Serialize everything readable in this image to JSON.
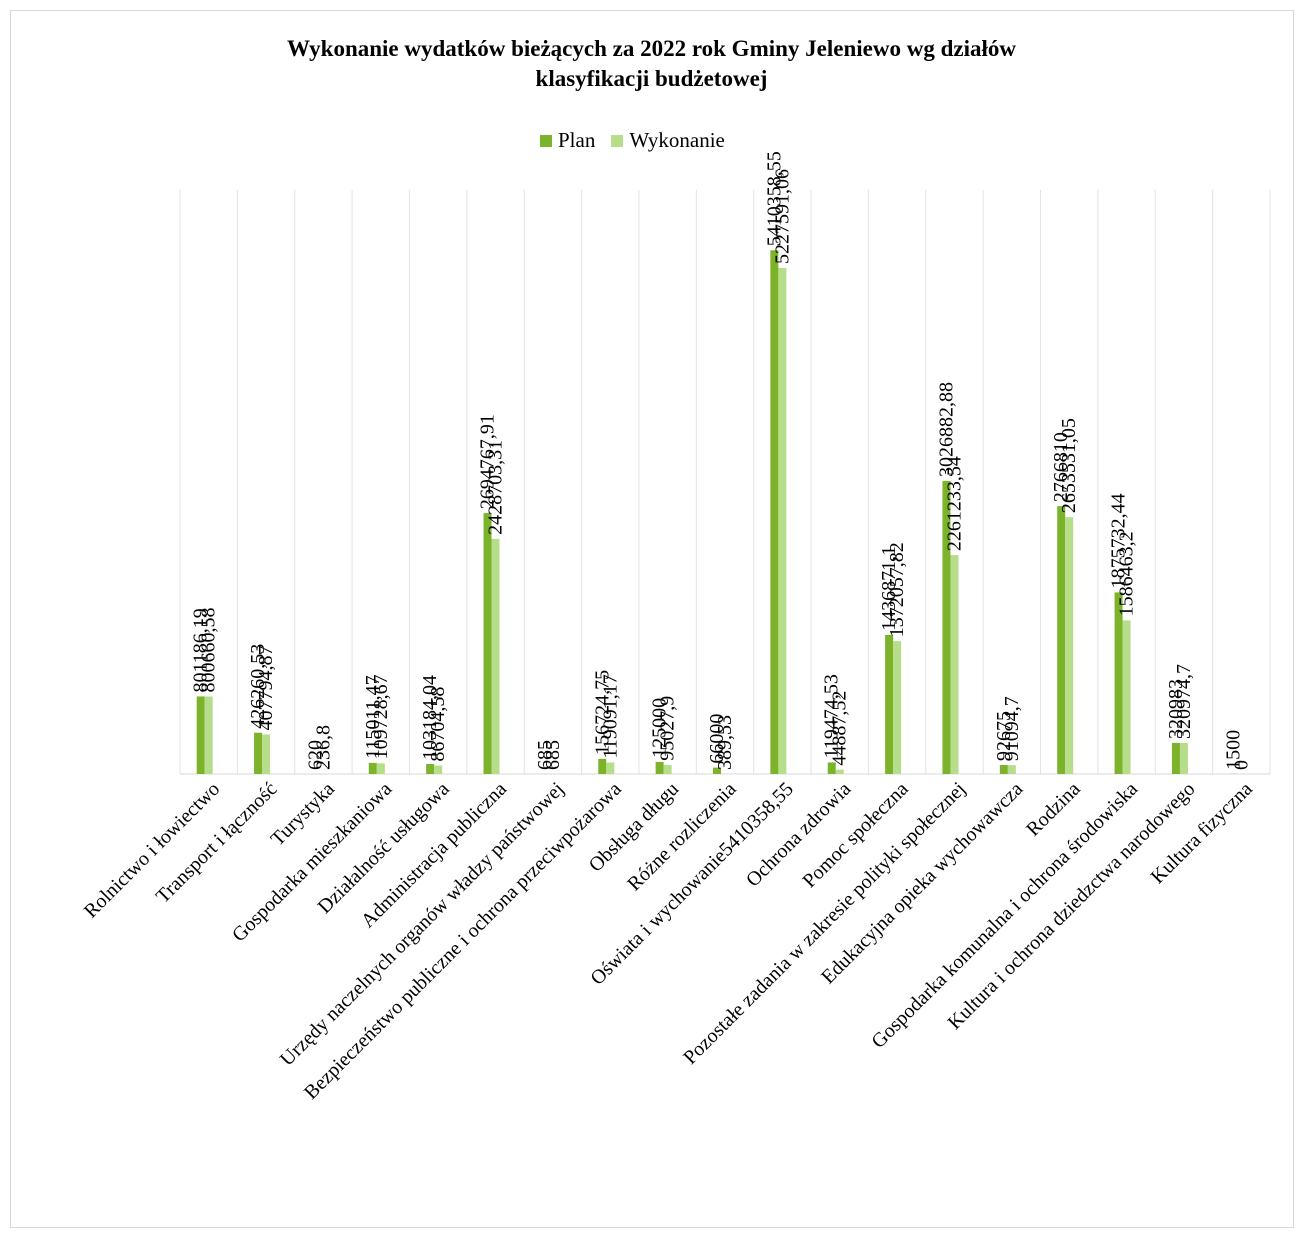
{
  "chart_data": {
    "type": "bar",
    "title_line1": "Wykonanie wydatków bieżących za 2022 rok Gminy Jeleniewo wg działów",
    "title_line2": "klasyfikacji budżetowej",
    "categories": [
      "Rolnictwo i łowiectwo",
      "Transport i łączność",
      "Turystyka",
      "Gospodarka mieszkaniowa",
      "Działalność usługowa",
      "Administracja publiczna",
      "Urzędy naczelnych organów władzy państwowej",
      "Bezpieczeństwo publiczne i ochrona przeciwpożarowa",
      "Obsługa długu",
      "Różne rozliczenia",
      "Oświata i wychowanie5410358,55",
      "Ochrona zdrowia",
      "Pomoc społeczna",
      "Pozostałe zadania w zakresie polityki społecznej",
      "Edukacyjna opieka wychowawcza",
      "Rodzina",
      "Gospodarka komunalna i ochrona środowiska",
      "Kultura i ochrona dziedzctwa narodowego",
      "Kultura fizyczna"
    ],
    "series": [
      {
        "name": "Plan",
        "color": "#7cb32b",
        "values": [
          801186.19,
          426260.53,
          620,
          115011.47,
          103184.04,
          2694767.91,
          685,
          156724.75,
          125000,
          66000,
          5410358.55,
          119474.53,
          1436871.1,
          3026882.88,
          92675,
          2766810,
          1875732.44,
          320983,
          1500
        ],
        "labels": [
          "801186,19",
          "426260,53",
          "620",
          "115011,47",
          "103184,04",
          "2694767,91",
          "685",
          "156724,75",
          "125000",
          "66000",
          "5410358,55",
          "119474,53",
          "1436871,1",
          "3026882,88",
          "92675",
          "2766810",
          "1875732,44",
          "320983",
          "1500"
        ]
      },
      {
        "name": "Wykonanie",
        "color": "#b6dd8a",
        "values": [
          800660.58,
          407794.87,
          236.8,
          109728.67,
          86704.58,
          2428703.31,
          685,
          119091.17,
          95027.9,
          389.53,
          5227591.06,
          44887.52,
          1372057.82,
          2261233.54,
          91094.7,
          2653531.05,
          1586463.2,
          320974.7,
          0
        ],
        "labels": [
          "800660,58",
          "407794,87",
          "236,8",
          "109728,67",
          "86704,58",
          "2428703,31",
          "685",
          "119091,17",
          "95027,9",
          "389,53",
          "5227591,06",
          "44887,52",
          "1372057,82",
          "2261233,54",
          "91094,7",
          "2653531,05",
          "1586463,2",
          "320974,7",
          "0"
        ]
      }
    ],
    "ylim": [
      0,
      6000000
    ],
    "grid": "vertical",
    "legend_position": "top"
  }
}
